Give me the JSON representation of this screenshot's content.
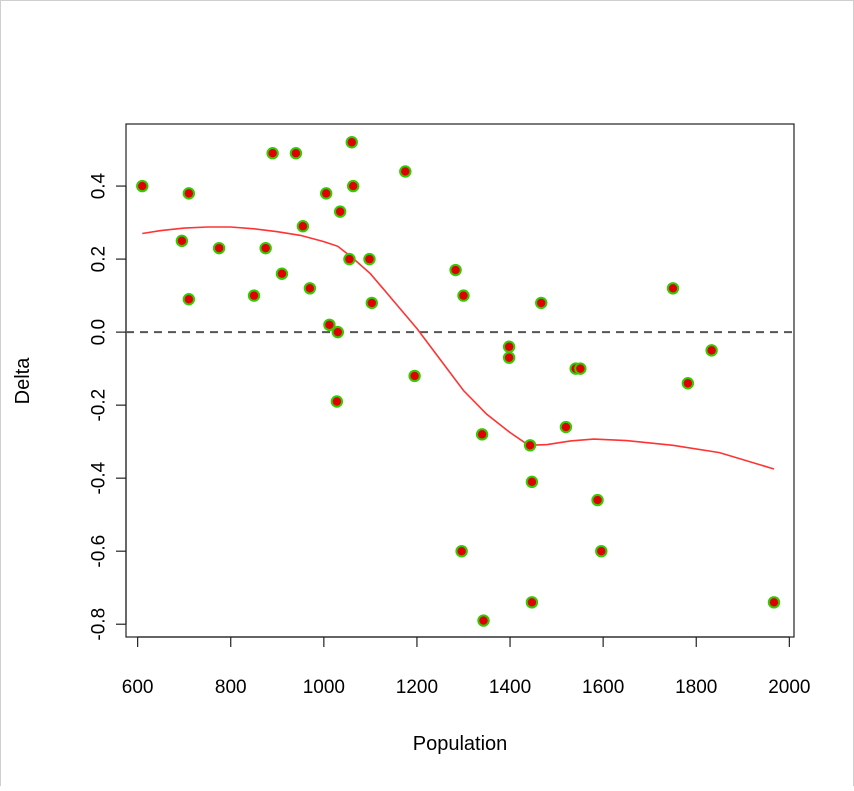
{
  "chart_data": {
    "type": "scatter",
    "title": "",
    "xlabel": "Population",
    "ylabel": "Delta",
    "xlim": [
      575,
      2010
    ],
    "ylim": [
      -0.835,
      0.57
    ],
    "x_ticks": [
      600,
      800,
      1000,
      1200,
      1400,
      1600,
      1800,
      2000
    ],
    "y_ticks": [
      -0.8,
      -0.6,
      -0.4,
      -0.2,
      0.0,
      0.2,
      0.4
    ],
    "y_tick_labels": [
      "-0.8",
      "-0.6",
      "-0.4",
      "-0.2",
      "0.0",
      "0.2",
      "0.4"
    ],
    "grid": false,
    "legend": "none",
    "reference_line": {
      "y": 0.0,
      "style": "dashed",
      "color": "#555555"
    },
    "point_fill": "#e00000",
    "point_edge": "#33cc00",
    "smooth_color": "#ff3333",
    "points": [
      {
        "x": 610,
        "y": 0.4
      },
      {
        "x": 695,
        "y": 0.25
      },
      {
        "x": 710,
        "y": 0.38
      },
      {
        "x": 710,
        "y": 0.09
      },
      {
        "x": 775,
        "y": 0.23
      },
      {
        "x": 850,
        "y": 0.1
      },
      {
        "x": 875,
        "y": 0.23
      },
      {
        "x": 890,
        "y": 0.49
      },
      {
        "x": 910,
        "y": 0.16
      },
      {
        "x": 940,
        "y": 0.49
      },
      {
        "x": 955,
        "y": 0.29
      },
      {
        "x": 970,
        "y": 0.12
      },
      {
        "x": 1005,
        "y": 0.38
      },
      {
        "x": 1012,
        "y": 0.02
      },
      {
        "x": 1028,
        "y": -0.19
      },
      {
        "x": 1030,
        "y": 0.0
      },
      {
        "x": 1035,
        "y": 0.33
      },
      {
        "x": 1055,
        "y": 0.2
      },
      {
        "x": 1060,
        "y": 0.52
      },
      {
        "x": 1063,
        "y": 0.4
      },
      {
        "x": 1098,
        "y": 0.2
      },
      {
        "x": 1103,
        "y": 0.08
      },
      {
        "x": 1175,
        "y": 0.44
      },
      {
        "x": 1195,
        "y": -0.12
      },
      {
        "x": 1283,
        "y": 0.17
      },
      {
        "x": 1296,
        "y": -0.6
      },
      {
        "x": 1300,
        "y": 0.1
      },
      {
        "x": 1340,
        "y": -0.28
      },
      {
        "x": 1343,
        "y": -0.79
      },
      {
        "x": 1398,
        "y": -0.04
      },
      {
        "x": 1398,
        "y": -0.07
      },
      {
        "x": 1443,
        "y": -0.31
      },
      {
        "x": 1447,
        "y": -0.41
      },
      {
        "x": 1447,
        "y": -0.74
      },
      {
        "x": 1467,
        "y": 0.08
      },
      {
        "x": 1520,
        "y": -0.26
      },
      {
        "x": 1541,
        "y": -0.1
      },
      {
        "x": 1551,
        "y": -0.1
      },
      {
        "x": 1588,
        "y": -0.46
      },
      {
        "x": 1596,
        "y": -0.6
      },
      {
        "x": 1750,
        "y": 0.12
      },
      {
        "x": 1782,
        "y": -0.14
      },
      {
        "x": 1833,
        "y": -0.05
      },
      {
        "x": 1967,
        "y": -0.74
      }
    ],
    "smooth_curve": [
      {
        "x": 610,
        "y": 0.27
      },
      {
        "x": 650,
        "y": 0.278
      },
      {
        "x": 700,
        "y": 0.285
      },
      {
        "x": 750,
        "y": 0.288
      },
      {
        "x": 800,
        "y": 0.288
      },
      {
        "x": 850,
        "y": 0.283
      },
      {
        "x": 900,
        "y": 0.275
      },
      {
        "x": 950,
        "y": 0.265
      },
      {
        "x": 1000,
        "y": 0.248
      },
      {
        "x": 1030,
        "y": 0.235
      },
      {
        "x": 1060,
        "y": 0.205
      },
      {
        "x": 1100,
        "y": 0.16
      },
      {
        "x": 1150,
        "y": 0.085
      },
      {
        "x": 1200,
        "y": 0.01
      },
      {
        "x": 1250,
        "y": -0.075
      },
      {
        "x": 1300,
        "y": -0.16
      },
      {
        "x": 1350,
        "y": -0.225
      },
      {
        "x": 1400,
        "y": -0.275
      },
      {
        "x": 1440,
        "y": -0.31
      },
      {
        "x": 1480,
        "y": -0.308
      },
      {
        "x": 1530,
        "y": -0.298
      },
      {
        "x": 1580,
        "y": -0.293
      },
      {
        "x": 1650,
        "y": -0.297
      },
      {
        "x": 1750,
        "y": -0.31
      },
      {
        "x": 1850,
        "y": -0.33
      },
      {
        "x": 1967,
        "y": -0.375
      }
    ]
  }
}
